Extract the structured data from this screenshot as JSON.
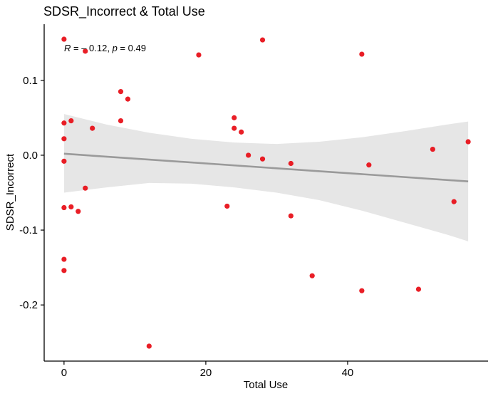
{
  "chart_data": {
    "type": "scatter",
    "title": "SDSR_Incorrect & Total Use",
    "xlabel": "Total Use",
    "ylabel": "SDSR_Incorrect",
    "xlim": [
      -2.8,
      59.8
    ],
    "ylim": [
      -0.275,
      0.175
    ],
    "xticks": [
      0,
      20,
      40
    ],
    "yticks": [
      -0.2,
      -0.1,
      0.0,
      0.1
    ],
    "xtick_labels": [
      "0",
      "20",
      "40"
    ],
    "ytick_labels": [
      "-0.2",
      "-0.1",
      "0.0",
      "0.1"
    ],
    "annotation": {
      "r_label": "R",
      "r_value": " = – 0.12, ",
      "p_label": "p",
      "p_value": " = 0.49"
    },
    "grid": false,
    "legend": "none",
    "colors": {
      "point": "#e8121a",
      "point_outline": "#e8121a",
      "fit_line": "#9a9a9a",
      "confidence_band": "#e6e6e6",
      "background": "#ffffff"
    },
    "points": [
      {
        "x": 0,
        "y": 0.155
      },
      {
        "x": 0,
        "y": 0.043
      },
      {
        "x": 0,
        "y": 0.022
      },
      {
        "x": 0,
        "y": -0.008
      },
      {
        "x": 0,
        "y": -0.07
      },
      {
        "x": 0,
        "y": -0.139
      },
      {
        "x": 0,
        "y": -0.154
      },
      {
        "x": 1,
        "y": 0.046
      },
      {
        "x": 1,
        "y": -0.069
      },
      {
        "x": 2,
        "y": -0.075
      },
      {
        "x": 3,
        "y": 0.139
      },
      {
        "x": 3,
        "y": -0.044
      },
      {
        "x": 4,
        "y": 0.036
      },
      {
        "x": 8,
        "y": 0.085
      },
      {
        "x": 8,
        "y": 0.046
      },
      {
        "x": 9,
        "y": 0.075
      },
      {
        "x": 12,
        "y": -0.255
      },
      {
        "x": 19,
        "y": 0.134
      },
      {
        "x": 23,
        "y": -0.068
      },
      {
        "x": 24,
        "y": 0.05
      },
      {
        "x": 24,
        "y": 0.036
      },
      {
        "x": 25,
        "y": 0.031
      },
      {
        "x": 26,
        "y": 0.0
      },
      {
        "x": 28,
        "y": 0.154
      },
      {
        "x": 28,
        "y": -0.005
      },
      {
        "x": 32,
        "y": -0.011
      },
      {
        "x": 32,
        "y": -0.081
      },
      {
        "x": 35,
        "y": -0.161
      },
      {
        "x": 42,
        "y": 0.135
      },
      {
        "x": 42,
        "y": -0.181
      },
      {
        "x": 43,
        "y": -0.013
      },
      {
        "x": 50,
        "y": -0.179
      },
      {
        "x": 52,
        "y": 0.008
      },
      {
        "x": 55,
        "y": -0.062
      },
      {
        "x": 57,
        "y": 0.018
      }
    ],
    "fit": {
      "x_start": 0,
      "x_end": 57,
      "y_start": 0.002,
      "y_end": -0.035
    },
    "band": {
      "x": [
        0,
        6,
        12,
        18,
        24,
        30,
        36,
        42,
        48,
        54,
        57
      ],
      "upper": [
        0.055,
        0.041,
        0.03,
        0.022,
        0.017,
        0.015,
        0.018,
        0.024,
        0.032,
        0.041,
        0.045
      ],
      "lower": [
        -0.05,
        -0.043,
        -0.037,
        -0.038,
        -0.043,
        -0.05,
        -0.06,
        -0.074,
        -0.09,
        -0.106,
        -0.115
      ]
    }
  }
}
